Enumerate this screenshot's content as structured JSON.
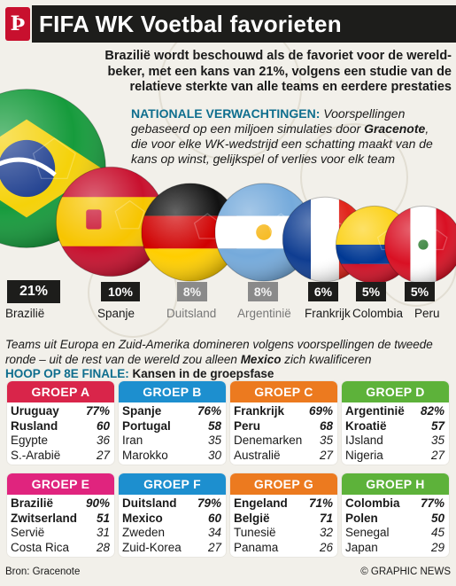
{
  "header": {
    "title": "FIFA WK Voetbal favorieten",
    "logo_glyph": "Ϸ"
  },
  "intro": "Brazilië wordt beschouwd als de favoriet voor de wereld-beker, met een kans van 21%, volgens een studie van de relatieve sterkte van alle teams en eerdere prestaties",
  "national": {
    "label": "NATIONALE VERWACHTINGEN:",
    "text_1": "Voorspellingen gebaseerd op een miljoen simulaties door",
    "source": "Gracenote",
    "text_2": ", die voor elke WK-wedstrijd een schatting maakt van de kans op winst, gelijkspel of verlies voor elk team"
  },
  "chart_data": {
    "type": "bar",
    "categories": [
      "Brazilië",
      "Spanje",
      "Duitsland",
      "Argentinië",
      "Frankrijk",
      "Colombia",
      "Peru"
    ],
    "values": [
      21,
      10,
      8,
      8,
      6,
      5,
      5
    ],
    "labels": [
      "21%",
      "10%",
      "8%",
      "8%",
      "6%",
      "5%",
      "5%"
    ],
    "encoding": "ball size"
  },
  "flag_colors": {
    "brazil": [
      "#169b3c",
      "#f5d20a",
      "#1f3f8f"
    ],
    "spain": [
      "#c8102e",
      "#f7c500"
    ],
    "germany": [
      "#111111",
      "#d00000",
      "#ffce00"
    ],
    "argentina": [
      "#75aadb",
      "#ffffff",
      "#f6b40e"
    ],
    "france": [
      "#0f3d91",
      "#ffffff",
      "#e1251b"
    ],
    "colombia": [
      "#fcd116",
      "#003893",
      "#ce1126"
    ],
    "peru": [
      "#d91023",
      "#ffffff"
    ]
  },
  "middle": {
    "text_1": "Teams uit Europa en Zuid-Amerika domineren volgens voorspellingen de tweede ronde – uit de rest van de wereld zou alleen",
    "highlight": "Mexico",
    "text_2": "zich kwalificeren"
  },
  "subhead": {
    "label": "HOOP OP 8E FINALE:",
    "text": "Kansen in de groepsfase"
  },
  "groups": [
    {
      "title": "GROEP A",
      "color": "#d9254a",
      "rows": [
        {
          "team": "Uruguay",
          "value": "77%"
        },
        {
          "team": "Rusland",
          "value": "60"
        },
        {
          "team": "Egypte",
          "value": "36"
        },
        {
          "team": "S.-Arabië",
          "value": "27"
        }
      ]
    },
    {
      "title": "GROEP B",
      "color": "#1d8fcf",
      "rows": [
        {
          "team": "Spanje",
          "value": "76%"
        },
        {
          "team": "Portugal",
          "value": "58"
        },
        {
          "team": "Iran",
          "value": "35"
        },
        {
          "team": "Marokko",
          "value": "30"
        }
      ]
    },
    {
      "title": "GROEP C",
      "color": "#ec7a1f",
      "rows": [
        {
          "team": "Frankrijk",
          "value": "69%"
        },
        {
          "team": "Peru",
          "value": "68"
        },
        {
          "team": "Denemarken",
          "value": "35"
        },
        {
          "team": "Australië",
          "value": "27"
        }
      ]
    },
    {
      "title": "GROEP D",
      "color": "#5db23a",
      "rows": [
        {
          "team": "Argentinië",
          "value": "82%"
        },
        {
          "team": "Kroatië",
          "value": "57"
        },
        {
          "team": "IJsland",
          "value": "35"
        },
        {
          "team": "Nigeria",
          "value": "27"
        }
      ]
    },
    {
      "title": "GROEP E",
      "color": "#e0247e",
      "rows": [
        {
          "team": "Brazilië",
          "value": "90%"
        },
        {
          "team": "Zwitserland",
          "value": "51"
        },
        {
          "team": "Servië",
          "value": "31"
        },
        {
          "team": "Costa Rica",
          "value": "28"
        }
      ]
    },
    {
      "title": "GROEP F",
      "color": "#1d8fcf",
      "rows": [
        {
          "team": "Duitsland",
          "value": "79%"
        },
        {
          "team": "Mexico",
          "value": "60"
        },
        {
          "team": "Zweden",
          "value": "34"
        },
        {
          "team": "Zuid-Korea",
          "value": "27"
        }
      ]
    },
    {
      "title": "GROEP G",
      "color": "#ec7a1f",
      "rows": [
        {
          "team": "Engeland",
          "value": "71%"
        },
        {
          "team": "België",
          "value": "71"
        },
        {
          "team": "Tunesië",
          "value": "32"
        },
        {
          "team": "Panama",
          "value": "26"
        }
      ]
    },
    {
      "title": "GROEP H",
      "color": "#5db23a",
      "rows": [
        {
          "team": "Colombia",
          "value": "77%"
        },
        {
          "team": "Polen",
          "value": "50"
        },
        {
          "team": "Senegal",
          "value": "45"
        },
        {
          "team": "Japan",
          "value": "29"
        }
      ]
    }
  ],
  "footer": {
    "source": "Bron: Gracenote",
    "credit": "© GRAPHIC NEWS"
  }
}
